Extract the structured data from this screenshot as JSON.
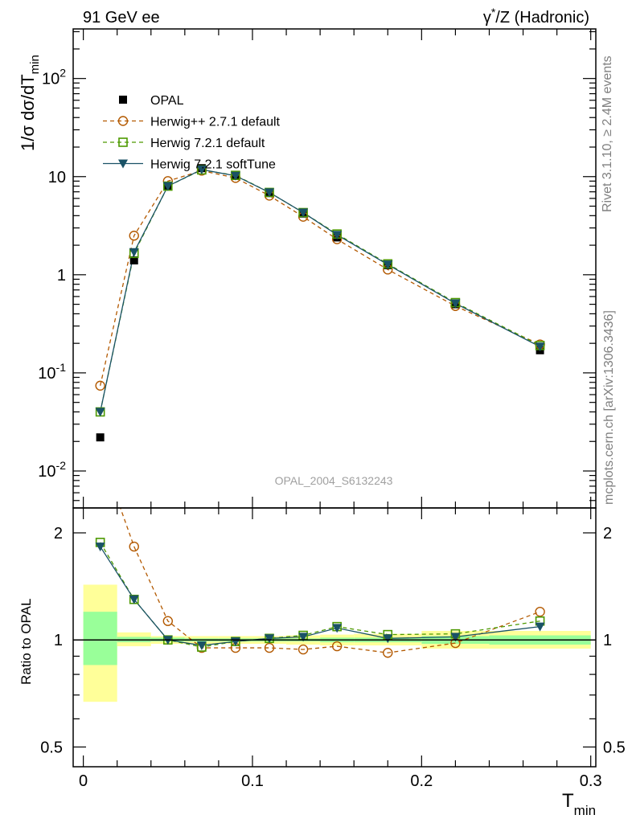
{
  "header": {
    "left": "91 GeV ee",
    "right_prefix": "γ",
    "right_sup": "*",
    "right_suffix": "/Z (Hadronic)"
  },
  "side_text": {
    "top": "Rivet 3.1.10, ≥ 2.4M events",
    "bottom": "mcplots.cern.ch [arXiv:1306.3436]"
  },
  "analysis_label": "OPAL_2004_S6132243",
  "colors": {
    "opal": "#000000",
    "herwigpp": "#b35900",
    "herwig721": "#4d9900",
    "softtune": "#1a5266",
    "band_inner": "#99ff99",
    "band_outer": "#ffff99"
  },
  "chart_data": [
    {
      "type": "scatter",
      "panel": "main",
      "ylabel_parts": [
        "1/σ dσ/dT",
        "min"
      ],
      "yscale": "log",
      "ylim": [
        0.0042,
        320
      ],
      "y_ticks": [
        {
          "label": "10",
          "sup": "-2",
          "value": 0.01
        },
        {
          "label": "10",
          "sup": "-1",
          "value": 0.1
        },
        {
          "label": "1",
          "sup": "",
          "value": 1
        },
        {
          "label": "10",
          "sup": "",
          "value": 10
        },
        {
          "label": "10",
          "sup": "2",
          "value": 100
        }
      ],
      "x": [
        0.01,
        0.03,
        0.05,
        0.07,
        0.09,
        0.11,
        0.13,
        0.15,
        0.18,
        0.22,
        0.27
      ],
      "series": [
        {
          "name": "OPAL",
          "values": [
            0.022,
            1.4,
            8.0,
            12.2,
            10.2,
            6.8,
            4.2,
            2.4,
            1.25,
            0.5,
            0.17
          ]
        },
        {
          "name": "Herwig++ 2.7.1 default",
          "values": [
            0.074,
            2.5,
            9.0,
            11.5,
            9.7,
            6.4,
            3.9,
            2.3,
            1.13,
            0.48,
            0.195
          ]
        },
        {
          "name": "Herwig 7.2.1 default",
          "values": [
            0.04,
            1.65,
            8.0,
            11.7,
            10.3,
            6.9,
            4.3,
            2.6,
            1.29,
            0.52,
            0.19
          ]
        },
        {
          "name": "Herwig 7.2.1 softTune",
          "values": [
            0.04,
            1.7,
            8.0,
            11.8,
            10.2,
            6.9,
            4.3,
            2.55,
            1.27,
            0.51,
            0.185
          ]
        }
      ],
      "legend_position": "top-left"
    },
    {
      "type": "line",
      "panel": "ratio",
      "ylabel": "Ratio to OPAL",
      "xlabel_parts": [
        "T",
        "min"
      ],
      "xlim": [
        -0.006,
        0.303
      ],
      "x_ticks": [
        {
          "label": "0",
          "value": 0
        },
        {
          "label": "0.1",
          "value": 0.1
        },
        {
          "label": "0.2",
          "value": 0.2
        },
        {
          "label": "0.3",
          "value": 0.3
        }
      ],
      "yscale": "log",
      "ylim": [
        0.44,
        2.35
      ],
      "y_ticks": [
        {
          "label": "0.5",
          "value": 0.5
        },
        {
          "label": "1",
          "value": 1
        },
        {
          "label": "2",
          "value": 2
        }
      ],
      "x": [
        0.01,
        0.03,
        0.05,
        0.07,
        0.09,
        0.11,
        0.13,
        0.15,
        0.18,
        0.22,
        0.27
      ],
      "band_bins": [
        {
          "xlo": 0.0,
          "xhi": 0.02,
          "stat": [
            0.85,
            1.2
          ],
          "total": [
            0.67,
            1.43
          ]
        },
        {
          "xlo": 0.02,
          "xhi": 0.04,
          "stat": [
            0.985,
            1.02
          ],
          "total": [
            0.96,
            1.05
          ]
        },
        {
          "xlo": 0.04,
          "xhi": 0.06,
          "stat": [
            0.99,
            1.015
          ],
          "total": [
            0.975,
            1.025
          ]
        },
        {
          "xlo": 0.06,
          "xhi": 0.08,
          "stat": [
            0.99,
            1.01
          ],
          "total": [
            0.975,
            1.025
          ]
        },
        {
          "xlo": 0.08,
          "xhi": 0.1,
          "stat": [
            0.99,
            1.01
          ],
          "total": [
            0.975,
            1.025
          ]
        },
        {
          "xlo": 0.1,
          "xhi": 0.12,
          "stat": [
            0.99,
            1.01
          ],
          "total": [
            0.975,
            1.025
          ]
        },
        {
          "xlo": 0.12,
          "xhi": 0.14,
          "stat": [
            0.99,
            1.01
          ],
          "total": [
            0.97,
            1.03
          ]
        },
        {
          "xlo": 0.14,
          "xhi": 0.16,
          "stat": [
            0.985,
            1.015
          ],
          "total": [
            0.965,
            1.035
          ]
        },
        {
          "xlo": 0.16,
          "xhi": 0.2,
          "stat": [
            0.985,
            1.015
          ],
          "total": [
            0.965,
            1.04
          ]
        },
        {
          "xlo": 0.2,
          "xhi": 0.24,
          "stat": [
            0.975,
            1.025
          ],
          "total": [
            0.945,
            1.06
          ]
        },
        {
          "xlo": 0.24,
          "xhi": 0.3,
          "stat": [
            0.97,
            1.03
          ],
          "total": [
            0.945,
            1.06
          ]
        }
      ],
      "series": [
        {
          "name": "Herwig++ 2.7.1 default",
          "values": [
            3.4,
            1.83,
            1.13,
            0.95,
            0.95,
            0.95,
            0.94,
            0.96,
            0.92,
            0.98,
            1.2
          ]
        },
        {
          "name": "Herwig 7.2.1 default",
          "values": [
            1.88,
            1.3,
            1.0,
            0.955,
            0.99,
            1.01,
            1.03,
            1.09,
            1.035,
            1.04,
            1.13
          ]
        },
        {
          "name": "Herwig 7.2.1 softTune",
          "values": [
            1.83,
            1.3,
            1.0,
            0.965,
            0.99,
            1.01,
            1.02,
            1.08,
            1.01,
            1.02,
            1.09
          ]
        }
      ]
    }
  ]
}
